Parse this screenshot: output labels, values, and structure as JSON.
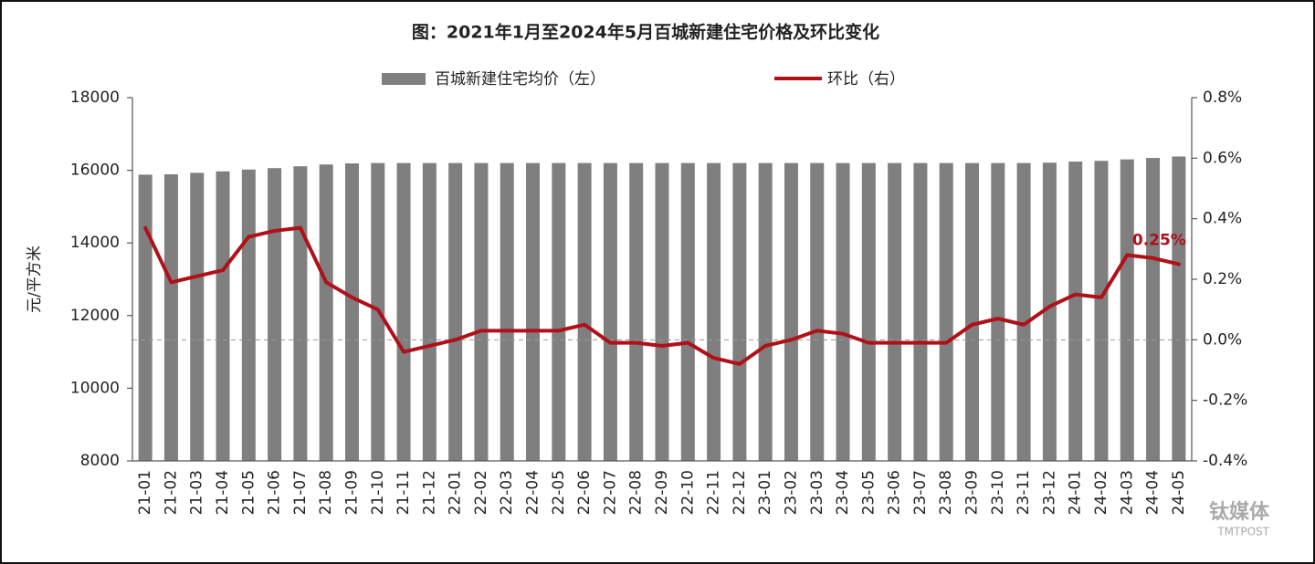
{
  "chart_data": {
    "type": "bar-line",
    "title": "图：2021年1月至2024年5月百城新建住宅价格及环比变化",
    "y_label": "元/平方米",
    "categories": [
      "21-01",
      "21-02",
      "21-03",
      "21-04",
      "21-05",
      "21-06",
      "21-07",
      "21-08",
      "21-09",
      "21-10",
      "21-11",
      "21-12",
      "22-01",
      "22-02",
      "22-03",
      "22-04",
      "22-05",
      "22-06",
      "22-07",
      "22-08",
      "22-09",
      "22-10",
      "22-11",
      "22-12",
      "23-01",
      "23-02",
      "23-03",
      "23-04",
      "23-05",
      "23-06",
      "23-07",
      "23-08",
      "23-09",
      "23-10",
      "23-11",
      "23-12",
      "24-01",
      "24-02",
      "24-03",
      "24-04",
      "24-05"
    ],
    "series": [
      {
        "name": "百城新建住宅均价（左）",
        "type": "bar",
        "color": "#7f7f7f",
        "values": [
          15880,
          15890,
          15930,
          15970,
          16020,
          16060,
          16110,
          16160,
          16190,
          16200,
          16200,
          16200,
          16200,
          16200,
          16200,
          16200,
          16200,
          16200,
          16200,
          16200,
          16200,
          16200,
          16200,
          16200,
          16200,
          16200,
          16200,
          16200,
          16200,
          16200,
          16200,
          16200,
          16200,
          16200,
          16200,
          16210,
          16240,
          16260,
          16300,
          16340,
          16380
        ]
      },
      {
        "name": "环比（右）",
        "type": "line",
        "axis": "y2",
        "color": "#b01018",
        "values": [
          0.37,
          0.19,
          0.21,
          0.23,
          0.34,
          0.36,
          0.37,
          0.19,
          0.14,
          0.1,
          -0.04,
          -0.02,
          0.0,
          0.03,
          0.03,
          0.03,
          0.03,
          0.05,
          -0.01,
          -0.01,
          -0.02,
          -0.01,
          -0.06,
          -0.08,
          -0.02,
          0.0,
          0.03,
          0.02,
          -0.01,
          -0.01,
          -0.01,
          -0.01,
          0.05,
          0.07,
          0.05,
          0.11,
          0.15,
          0.14,
          0.28,
          0.27,
          0.25
        ],
        "value_labels": [
          null,
          null,
          null,
          null,
          null,
          null,
          null,
          null,
          null,
          null,
          null,
          null,
          null,
          null,
          null,
          null,
          null,
          null,
          null,
          null,
          null,
          null,
          null,
          null,
          null,
          null,
          null,
          null,
          null,
          null,
          null,
          null,
          null,
          null,
          null,
          null,
          null,
          null,
          null,
          null,
          "0.25%"
        ]
      }
    ],
    "ylim": [
      8000,
      18000
    ],
    "yticks": [
      8000,
      10000,
      12000,
      14000,
      16000,
      18000
    ],
    "y2lim": [
      -0.4,
      0.8
    ],
    "y2ticks": [
      {
        "value": -0.4,
        "label": "-0.4%"
      },
      {
        "value": -0.2,
        "label": "-0.2%"
      },
      {
        "value": 0.0,
        "label": "0.0%"
      },
      {
        "value": 0.2,
        "label": "0.2%"
      },
      {
        "value": 0.4,
        "label": "0.4%"
      },
      {
        "value": 0.6,
        "label": "0.6%"
      },
      {
        "value": 0.8,
        "label": "0.8%"
      }
    ],
    "zero_line": true,
    "legend": "top"
  },
  "logo": {
    "name": "钛媒体",
    "sub": "TMTPOST"
  }
}
